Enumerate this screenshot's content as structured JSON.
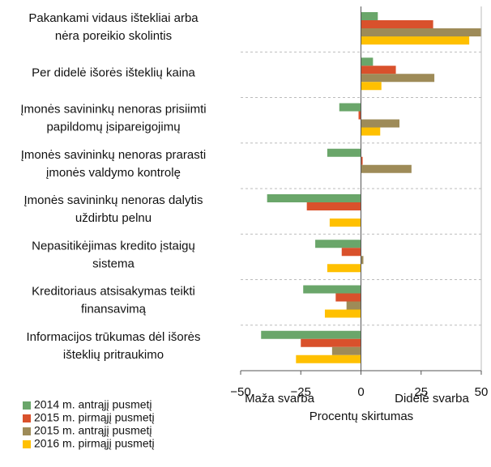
{
  "chart_data": {
    "type": "hbar",
    "categories": [
      [
        "Pakankami vidaus ištekliai  arba",
        "nėra poreikio skolintis"
      ],
      [
        "Per didelė išorės išteklių kaina"
      ],
      [
        "Įmonės savininkų nenoras prisiimti",
        "papildomų įsipareigojimų"
      ],
      [
        "Įmonės savininkų nenoras prarasti",
        "įmonės valdymo kontrolę"
      ],
      [
        "Įmonės savininkų nenoras dalytis",
        "uždirbtu pelnu"
      ],
      [
        "Nepasitikėjimas kredito įstaigų",
        "sistema"
      ],
      [
        "Kreditoriaus atsisakymas teikti",
        "finansavimą"
      ],
      [
        "Informacijos trūkumas dėl išorės",
        "išteklių pritraukimo"
      ]
    ],
    "series": [
      {
        "name": "2014 m. antrąjį pusmetį",
        "color": "#6aa66a",
        "values": [
          7,
          5,
          -9,
          -14,
          -39,
          -19,
          -24,
          -41.5
        ]
      },
      {
        "name": "2015 m. pirmąjį pusmetį",
        "color": "#d9512c",
        "values": [
          30,
          14.5,
          -1,
          0.7,
          -22.5,
          -8,
          -10.5,
          -25
        ]
      },
      {
        "name": "2015 m. antrąjį pusmetį",
        "color": "#9e8b58",
        "values": [
          50,
          30.5,
          16,
          21,
          0,
          1,
          -6,
          -12
        ]
      },
      {
        "name": "2016 m. pirmąjį pusmetį",
        "color": "#ffc000",
        "values": [
          45,
          8.5,
          8,
          0,
          -13,
          -14,
          -15,
          -27
        ]
      }
    ],
    "xlim": [
      -50,
      50
    ],
    "xticks": [
      {
        "value": -50,
        "label": "−50"
      },
      {
        "value": -25,
        "label": "−25"
      },
      0,
      25,
      50
    ],
    "x_label_left": "Maža svarba",
    "x_label_right": "Didelė svarba",
    "xlabel": "Procentų skirtumas"
  }
}
